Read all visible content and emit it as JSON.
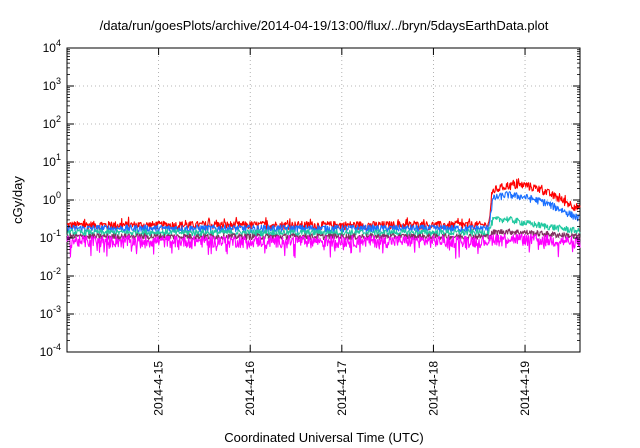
{
  "chart_data": {
    "type": "line",
    "title": "/data/run/goesPlots/archive/2014-04-19/13:00/flux/../bryn/5daysEarthData.plot",
    "xlabel": "Coordinated Universal Time (UTC)",
    "ylabel": "cGy/day",
    "yscale": "log",
    "ylim": [
      0.0001,
      10000
    ],
    "xlim": [
      0,
      5.6
    ],
    "grid": true,
    "legend": "none",
    "x_ticks": [
      {
        "x": 1,
        "label": "2014-4-15"
      },
      {
        "x": 2,
        "label": "2014-4-16"
      },
      {
        "x": 3,
        "label": "2014-4-17"
      },
      {
        "x": 4,
        "label": "2014-4-18"
      },
      {
        "x": 5,
        "label": "2014-4-19"
      }
    ],
    "y_ticks": [
      {
        "v": 0.0001,
        "base": "10",
        "exp": "-4"
      },
      {
        "v": 0.001,
        "base": "10",
        "exp": "-3"
      },
      {
        "v": 0.01,
        "base": "10",
        "exp": "-2"
      },
      {
        "v": 0.1,
        "base": "10",
        "exp": "-1"
      },
      {
        "v": 1,
        "base": "10",
        "exp": "0"
      },
      {
        "v": 10,
        "base": "10",
        "exp": "1"
      },
      {
        "v": 100,
        "base": "10",
        "exp": "2"
      },
      {
        "v": 1000,
        "base": "10",
        "exp": "3"
      },
      {
        "v": 10000,
        "base": "10",
        "exp": "4"
      }
    ],
    "series": [
      {
        "color": "#ff0000",
        "x": [
          0,
          4.6,
          4.65,
          4.8,
          5.0,
          5.2,
          5.4,
          5.6
        ],
        "values": [
          0.22,
          0.22,
          1.8,
          2.4,
          2.5,
          1.8,
          1.0,
          0.6
        ],
        "noise": 0.25
      },
      {
        "color": "#1a6fff",
        "x": [
          0,
          4.6,
          4.65,
          4.8,
          5.0,
          5.2,
          5.4,
          5.6
        ],
        "values": [
          0.18,
          0.18,
          1.1,
          1.4,
          1.2,
          0.9,
          0.55,
          0.32
        ],
        "noise": 0.22
      },
      {
        "color": "#20c8a0",
        "x": [
          0,
          4.6,
          4.65,
          4.8,
          5.0,
          5.2,
          5.4,
          5.6
        ],
        "values": [
          0.14,
          0.14,
          0.3,
          0.32,
          0.25,
          0.21,
          0.18,
          0.15
        ],
        "noise": 0.2
      },
      {
        "color": "#803060",
        "x": [
          0,
          4.6,
          4.65,
          4.8,
          5.0,
          5.2,
          5.4,
          5.6
        ],
        "values": [
          0.11,
          0.11,
          0.14,
          0.15,
          0.14,
          0.13,
          0.12,
          0.11
        ],
        "noise": 0.18
      },
      {
        "color": "#ff00ff",
        "x": [
          0,
          4.6,
          4.65,
          4.8,
          5.0,
          5.2,
          5.4,
          5.6
        ],
        "values": [
          0.085,
          0.085,
          0.1,
          0.1,
          0.095,
          0.09,
          0.085,
          0.08
        ],
        "noise": 0.35
      }
    ]
  }
}
